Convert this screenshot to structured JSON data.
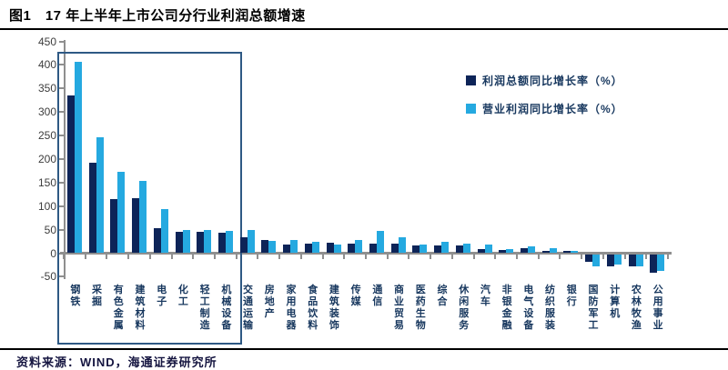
{
  "header": {
    "title": "图1　17 年上半年上市公司分行业利润总额增速"
  },
  "chart_data": {
    "type": "bar",
    "title": "17年上半年上市公司分行业利润总额增速",
    "categories": [
      "钢铁",
      "采掘",
      "有色金属",
      "建筑材料",
      "电子",
      "化工",
      "轻工制造",
      "机械设备",
      "交通运输",
      "房地产",
      "家用电器",
      "食品饮料",
      "建筑装饰",
      "传媒",
      "通信",
      "商业贸易",
      "医药生物",
      "综合",
      "休闲服务",
      "汽车",
      "非银金融",
      "电气设备",
      "纺织服装",
      "银行",
      "国防军工",
      "计算机",
      "农林牧渔",
      "公用事业"
    ],
    "series": [
      {
        "name": "利润总额同比增长率（%）",
        "color": "#0d2458",
        "values": [
          335,
          192,
          113,
          115,
          53,
          45,
          45,
          42,
          32,
          28,
          18,
          20,
          22,
          20,
          20,
          19,
          15,
          15,
          15,
          7,
          5,
          10,
          4,
          4,
          -15,
          -26,
          -25,
          -38
        ]
      },
      {
        "name": "营业利润同比增长率（%）",
        "color": "#25a9e0",
        "values": [
          405,
          245,
          172,
          153,
          92,
          48,
          48,
          47,
          49,
          26,
          28,
          23,
          18,
          28,
          47,
          33,
          18,
          24,
          20,
          17,
          8,
          14,
          10,
          3,
          -25,
          -22,
          -26,
          -34
        ]
      }
    ],
    "ylim": [
      -50,
      450
    ],
    "yticks": [
      450,
      400,
      350,
      300,
      250,
      200,
      150,
      100,
      50,
      0,
      -50
    ],
    "grid": false,
    "legend_position": "upper-right",
    "highlight_box": {
      "from": "钢铁",
      "to": "机械设备"
    }
  },
  "footer": {
    "source": "资料来源：WIND，海通证券研究所"
  }
}
